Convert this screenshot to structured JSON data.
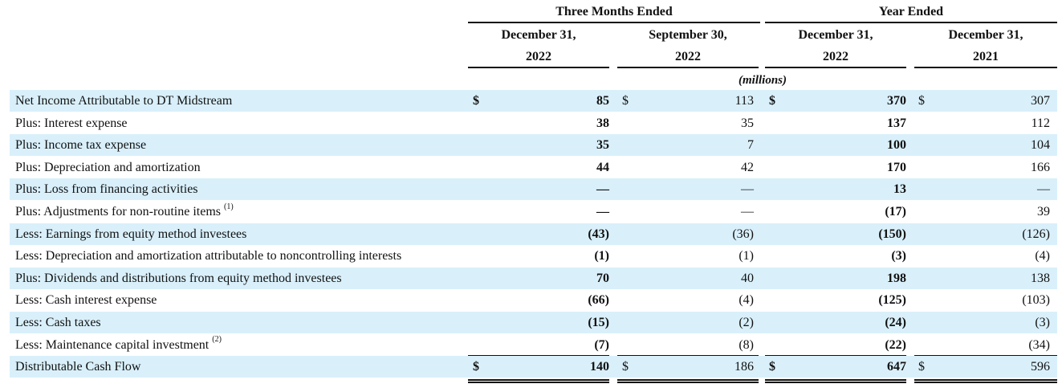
{
  "header": {
    "group_three_months": "Three Months Ended",
    "group_year": "Year Ended",
    "columns": [
      {
        "line1": "December 31,",
        "line2": "2022"
      },
      {
        "line1": "September 30,",
        "line2": "2022"
      },
      {
        "line1": "December 31,",
        "line2": "2022"
      },
      {
        "line1": "December 31,",
        "line2": "2021"
      }
    ],
    "units": "(millions)"
  },
  "rows": [
    {
      "label": "Net Income Attributable to DT Midstream",
      "note": "",
      "dollar": [
        "$",
        "$",
        "$",
        "$"
      ],
      "values": [
        "85",
        "113",
        "370",
        "307"
      ]
    },
    {
      "label": "Plus: Interest expense",
      "note": "",
      "dollar": [
        "",
        "",
        "",
        ""
      ],
      "values": [
        "38",
        "35",
        "137",
        "112"
      ]
    },
    {
      "label": "Plus: Income tax expense",
      "note": "",
      "dollar": [
        "",
        "",
        "",
        ""
      ],
      "values": [
        "35",
        "7",
        "100",
        "104"
      ]
    },
    {
      "label": "Plus: Depreciation and amortization",
      "note": "",
      "dollar": [
        "",
        "",
        "",
        ""
      ],
      "values": [
        "44",
        "42",
        "170",
        "166"
      ]
    },
    {
      "label": "Plus: Loss from financing activities",
      "note": "",
      "dollar": [
        "",
        "",
        "",
        ""
      ],
      "values": [
        "—",
        "—",
        "13",
        "—"
      ]
    },
    {
      "label": "Plus: Adjustments for non-routine items",
      "note": "(1)",
      "dollar": [
        "",
        "",
        "",
        ""
      ],
      "values": [
        "—",
        "—",
        "(17)",
        "39"
      ]
    },
    {
      "label": "Less: Earnings from equity method investees",
      "note": "",
      "dollar": [
        "",
        "",
        "",
        ""
      ],
      "values": [
        "(43)",
        "(36)",
        "(150)",
        "(126)"
      ]
    },
    {
      "label": "Less: Depreciation and amortization attributable to noncontrolling interests",
      "note": "",
      "dollar": [
        "",
        "",
        "",
        ""
      ],
      "values": [
        "(1)",
        "(1)",
        "(3)",
        "(4)"
      ]
    },
    {
      "label": "Plus: Dividends and distributions from equity method investees",
      "note": "",
      "dollar": [
        "",
        "",
        "",
        ""
      ],
      "values": [
        "70",
        "40",
        "198",
        "138"
      ]
    },
    {
      "label": "Less: Cash interest expense",
      "note": "",
      "dollar": [
        "",
        "",
        "",
        ""
      ],
      "values": [
        "(66)",
        "(4)",
        "(125)",
        "(103)"
      ]
    },
    {
      "label": "Less: Cash taxes",
      "note": "",
      "dollar": [
        "",
        "",
        "",
        ""
      ],
      "values": [
        "(15)",
        "(2)",
        "(24)",
        "(3)"
      ]
    },
    {
      "label": "Less: Maintenance capital investment",
      "note": "(2)",
      "dollar": [
        "",
        "",
        "",
        ""
      ],
      "values": [
        "(7)",
        "(8)",
        "(22)",
        "(34)"
      ]
    },
    {
      "label": "Distributable Cash Flow",
      "note": "",
      "dollar": [
        "$",
        "$",
        "$",
        "$"
      ],
      "values": [
        "140",
        "186",
        "647",
        "596"
      ]
    }
  ]
}
